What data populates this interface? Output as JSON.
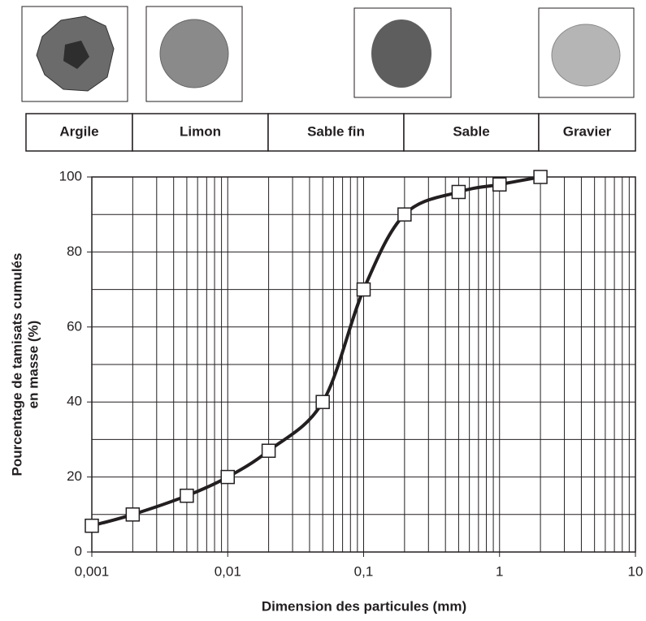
{
  "chart_data": {
    "type": "line",
    "bands": [
      "Argile",
      "Limon",
      "Sable fin",
      "Sable",
      "Gravier"
    ],
    "x": [
      0.001,
      0.002,
      0.005,
      0.01,
      0.02,
      0.05,
      0.1,
      0.2,
      0.5,
      1,
      2
    ],
    "series": [
      {
        "color": "#231f20",
        "values": [
          7,
          10,
          15,
          20,
          27,
          40,
          70,
          90,
          96,
          98,
          100
        ]
      }
    ],
    "xlabel": "Dimension des particules (mm)",
    "ylabel": [
      "Pourcentage de tamisats cumulés",
      "en masse (%)"
    ],
    "xscale": "log",
    "xlim": [
      0.001,
      10
    ],
    "xticks": [
      {
        "value": 0.001,
        "label": "0,001"
      },
      {
        "value": 0.01,
        "label": "0,01"
      },
      {
        "value": 0.1,
        "label": "0,1"
      },
      1,
      10
    ],
    "xgrid": [
      0.001,
      0.002,
      0.003,
      0.004,
      0.005,
      0.006,
      0.007,
      0.008,
      0.009,
      0.01,
      0.02,
      0.03,
      0.04,
      0.05,
      0.06,
      0.07,
      0.08,
      0.09,
      0.1,
      0.2,
      0.3,
      0.4,
      0.5,
      0.6,
      0.7,
      0.8,
      0.9,
      1,
      2,
      3,
      4,
      5,
      6,
      7,
      8,
      9,
      10
    ],
    "ylim": [
      0,
      100
    ],
    "yticks": [
      0,
      20,
      40,
      60,
      80,
      100
    ],
    "ygrid": [
      0,
      10,
      20,
      30,
      40,
      50,
      60,
      70,
      80,
      90,
      100
    ],
    "grid": true
  }
}
